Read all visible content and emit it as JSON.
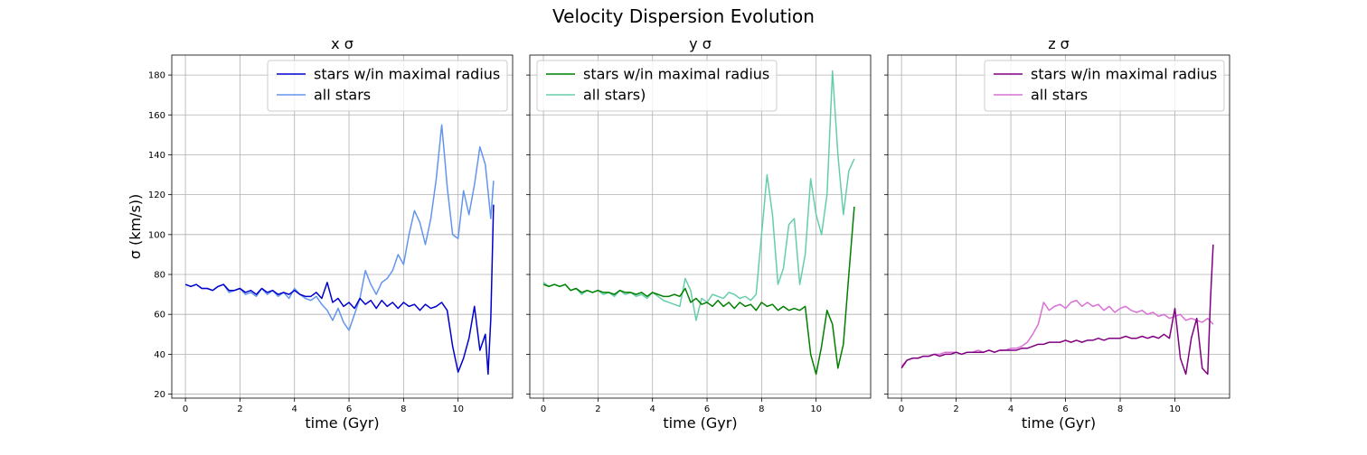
{
  "figure": {
    "title": "Velocity Dispersion Evolution"
  },
  "chart_data": [
    {
      "type": "line",
      "title": "x σ",
      "xlabel": "time (Gyr)",
      "ylabel": "σ (km/s))",
      "xlim": [
        -0.5,
        12
      ],
      "ylim": [
        18,
        190
      ],
      "xticks": [
        0,
        2,
        4,
        6,
        8,
        10
      ],
      "yticks": [
        20,
        40,
        60,
        80,
        100,
        120,
        140,
        160,
        180
      ],
      "legend": "upper-right",
      "grid": true,
      "series": [
        {
          "name": "all stars",
          "color": "#6495ED",
          "x": [
            0,
            0.2,
            0.4,
            0.6,
            0.8,
            1.0,
            1.2,
            1.4,
            1.6,
            1.8,
            2.0,
            2.2,
            2.4,
            2.6,
            2.8,
            3.0,
            3.2,
            3.4,
            3.6,
            3.8,
            4.0,
            4.2,
            4.4,
            4.6,
            4.8,
            5.0,
            5.2,
            5.4,
            5.6,
            5.8,
            6.0,
            6.2,
            6.4,
            6.6,
            6.8,
            7.0,
            7.2,
            7.4,
            7.6,
            7.8,
            8.0,
            8.2,
            8.4,
            8.6,
            8.8,
            9.0,
            9.2,
            9.4,
            9.5,
            9.6,
            9.8,
            10.0,
            10.2,
            10.4,
            10.6,
            10.8,
            11.0,
            11.2,
            11.3
          ],
          "y": [
            75,
            74,
            75,
            73,
            73,
            72,
            74,
            75,
            71,
            72,
            73,
            70,
            71,
            69,
            73,
            70,
            72,
            69,
            71,
            68,
            73,
            70,
            68,
            67,
            69,
            65,
            62,
            57,
            63,
            56,
            52,
            60,
            68,
            82,
            75,
            70,
            76,
            78,
            82,
            90,
            85,
            100,
            112,
            106,
            95,
            108,
            128,
            155,
            140,
            124,
            100,
            98,
            122,
            110,
            125,
            144,
            135,
            108,
            127
          ]
        },
        {
          "name": "stars w/in maximal radius",
          "color": "#0000CD",
          "x": [
            0,
            0.2,
            0.4,
            0.6,
            0.8,
            1.0,
            1.2,
            1.4,
            1.6,
            1.8,
            2.0,
            2.2,
            2.4,
            2.6,
            2.8,
            3.0,
            3.2,
            3.4,
            3.6,
            3.8,
            4.0,
            4.2,
            4.4,
            4.6,
            4.8,
            5.0,
            5.2,
            5.4,
            5.6,
            5.8,
            6.0,
            6.2,
            6.4,
            6.6,
            6.8,
            7.0,
            7.2,
            7.4,
            7.6,
            7.8,
            8.0,
            8.2,
            8.4,
            8.6,
            8.8,
            9.0,
            9.2,
            9.4,
            9.6,
            9.8,
            10.0,
            10.2,
            10.4,
            10.6,
            10.8,
            11.0,
            11.1,
            11.2,
            11.3
          ],
          "y": [
            75,
            74,
            75,
            73,
            73,
            72,
            74,
            75,
            72,
            72,
            73,
            71,
            72,
            70,
            73,
            71,
            72,
            70,
            71,
            70,
            72,
            70,
            69,
            69,
            71,
            68,
            76,
            66,
            68,
            64,
            66,
            63,
            68,
            65,
            67,
            63,
            67,
            64,
            66,
            63,
            66,
            64,
            65,
            62,
            65,
            63,
            64,
            66,
            62,
            44,
            31,
            38,
            48,
            64,
            42,
            50,
            30,
            58,
            115
          ]
        },
        {
          "name": "",
          "color": "#0000CD",
          "x": [],
          "y": []
        }
      ]
    },
    {
      "type": "line",
      "title": "y σ",
      "xlabel": "time (Gyr)",
      "ylabel": "",
      "xlim": [
        -0.5,
        12
      ],
      "ylim": [
        18,
        190
      ],
      "xticks": [
        0,
        2,
        4,
        6,
        8,
        10
      ],
      "yticks": [
        20,
        40,
        60,
        80,
        100,
        120,
        140,
        160,
        180
      ],
      "legend": "upper-left",
      "grid": true,
      "series": [
        {
          "name": "all stars)",
          "color": "#66CDAA",
          "x": [
            0,
            0.2,
            0.4,
            0.6,
            0.8,
            1.0,
            1.2,
            1.4,
            1.6,
            1.8,
            2.0,
            2.2,
            2.4,
            2.6,
            2.8,
            3.0,
            3.2,
            3.4,
            3.6,
            3.8,
            4.0,
            4.2,
            4.4,
            4.6,
            4.8,
            5.0,
            5.2,
            5.4,
            5.6,
            5.8,
            6.0,
            6.2,
            6.4,
            6.6,
            6.8,
            7.0,
            7.2,
            7.4,
            7.6,
            7.8,
            8.0,
            8.2,
            8.4,
            8.6,
            8.8,
            9.0,
            9.2,
            9.4,
            9.6,
            9.8,
            10.0,
            10.2,
            10.4,
            10.6,
            10.8,
            11.0,
            11.2,
            11.4
          ],
          "y": [
            76,
            74,
            75,
            74,
            75,
            72,
            73,
            70,
            72,
            71,
            72,
            70,
            71,
            69,
            72,
            70,
            71,
            69,
            70,
            68,
            71,
            69,
            67,
            66,
            65,
            64,
            78,
            72,
            57,
            68,
            66,
            70,
            69,
            68,
            71,
            70,
            68,
            69,
            67,
            70,
            100,
            130,
            110,
            75,
            83,
            105,
            108,
            75,
            90,
            128,
            110,
            100,
            120,
            182,
            140,
            110,
            132,
            138
          ]
        },
        {
          "name": "stars w/in maximal radius",
          "color": "#008000",
          "x": [
            0,
            0.2,
            0.4,
            0.6,
            0.8,
            1.0,
            1.2,
            1.4,
            1.6,
            1.8,
            2.0,
            2.2,
            2.4,
            2.6,
            2.8,
            3.0,
            3.2,
            3.4,
            3.6,
            3.8,
            4.0,
            4.2,
            4.4,
            4.6,
            4.8,
            5.0,
            5.2,
            5.4,
            5.6,
            5.8,
            6.0,
            6.2,
            6.4,
            6.6,
            6.8,
            7.0,
            7.2,
            7.4,
            7.6,
            7.8,
            8.0,
            8.2,
            8.4,
            8.6,
            8.8,
            9.0,
            9.2,
            9.4,
            9.6,
            9.8,
            10.0,
            10.2,
            10.4,
            10.6,
            10.8,
            11.0,
            11.2,
            11.4
          ],
          "y": [
            75,
            74,
            75,
            74,
            75,
            72,
            73,
            71,
            72,
            71,
            72,
            71,
            71,
            70,
            72,
            71,
            71,
            70,
            71,
            69,
            71,
            70,
            69,
            69,
            70,
            69,
            73,
            66,
            68,
            65,
            66,
            64,
            67,
            64,
            66,
            63,
            66,
            64,
            65,
            62,
            66,
            64,
            65,
            62,
            64,
            62,
            63,
            62,
            64,
            40,
            30,
            44,
            62,
            55,
            33,
            45,
            80,
            114
          ]
        }
      ]
    },
    {
      "type": "line",
      "title": "z σ",
      "xlabel": "time (Gyr)",
      "ylabel": "",
      "xlim": [
        -0.5,
        12
      ],
      "ylim": [
        18,
        190
      ],
      "xticks": [
        0,
        2,
        4,
        6,
        8,
        10
      ],
      "yticks": [
        20,
        40,
        60,
        80,
        100,
        120,
        140,
        160,
        180
      ],
      "legend": "upper-right",
      "grid": true,
      "series": [
        {
          "name": "all stars",
          "color": "#DA70D6",
          "x": [
            0,
            0.2,
            0.4,
            0.6,
            0.8,
            1.0,
            1.2,
            1.4,
            1.6,
            1.8,
            2.0,
            2.2,
            2.4,
            2.6,
            2.8,
            3.0,
            3.2,
            3.4,
            3.6,
            3.8,
            4.0,
            4.2,
            4.4,
            4.6,
            4.8,
            5.0,
            5.2,
            5.4,
            5.6,
            5.8,
            6.0,
            6.2,
            6.4,
            6.6,
            6.8,
            7.0,
            7.2,
            7.4,
            7.6,
            7.8,
            8.0,
            8.2,
            8.4,
            8.6,
            8.8,
            9.0,
            9.2,
            9.4,
            9.6,
            9.8,
            10.0,
            10.2,
            10.4,
            10.6,
            10.8,
            11.0,
            11.2,
            11.4
          ],
          "y": [
            34,
            37,
            38,
            38,
            39,
            39,
            40,
            40,
            41,
            41,
            41,
            40,
            41,
            41,
            42,
            41,
            42,
            41,
            42,
            42,
            43,
            43,
            44,
            46,
            50,
            55,
            66,
            62,
            64,
            65,
            63,
            66,
            67,
            64,
            66,
            64,
            65,
            62,
            64,
            61,
            63,
            64,
            62,
            61,
            62,
            60,
            61,
            59,
            60,
            58,
            59,
            60,
            57,
            58,
            57,
            56,
            58,
            55
          ]
        },
        {
          "name": "stars w/in maximal radius",
          "color": "#800080",
          "x": [
            0,
            0.2,
            0.4,
            0.6,
            0.8,
            1.0,
            1.2,
            1.4,
            1.6,
            1.8,
            2.0,
            2.2,
            2.4,
            2.6,
            2.8,
            3.0,
            3.2,
            3.4,
            3.6,
            3.8,
            4.0,
            4.2,
            4.4,
            4.6,
            4.8,
            5.0,
            5.2,
            5.4,
            5.6,
            5.8,
            6.0,
            6.2,
            6.4,
            6.6,
            6.8,
            7.0,
            7.2,
            7.4,
            7.6,
            7.8,
            8.0,
            8.2,
            8.4,
            8.6,
            8.8,
            9.0,
            9.2,
            9.4,
            9.6,
            9.8,
            10.0,
            10.2,
            10.4,
            10.6,
            10.8,
            11.0,
            11.2,
            11.3,
            11.4
          ],
          "y": [
            33,
            37,
            38,
            38,
            39,
            39,
            40,
            39,
            40,
            40,
            41,
            40,
            41,
            41,
            41,
            41,
            42,
            41,
            42,
            42,
            42,
            42,
            43,
            43,
            44,
            45,
            45,
            46,
            46,
            46,
            47,
            46,
            47,
            46,
            47,
            47,
            48,
            47,
            48,
            48,
            48,
            49,
            48,
            48,
            49,
            48,
            49,
            48,
            50,
            48,
            63,
            38,
            30,
            48,
            58,
            33,
            30,
            67,
            95
          ]
        }
      ]
    }
  ]
}
